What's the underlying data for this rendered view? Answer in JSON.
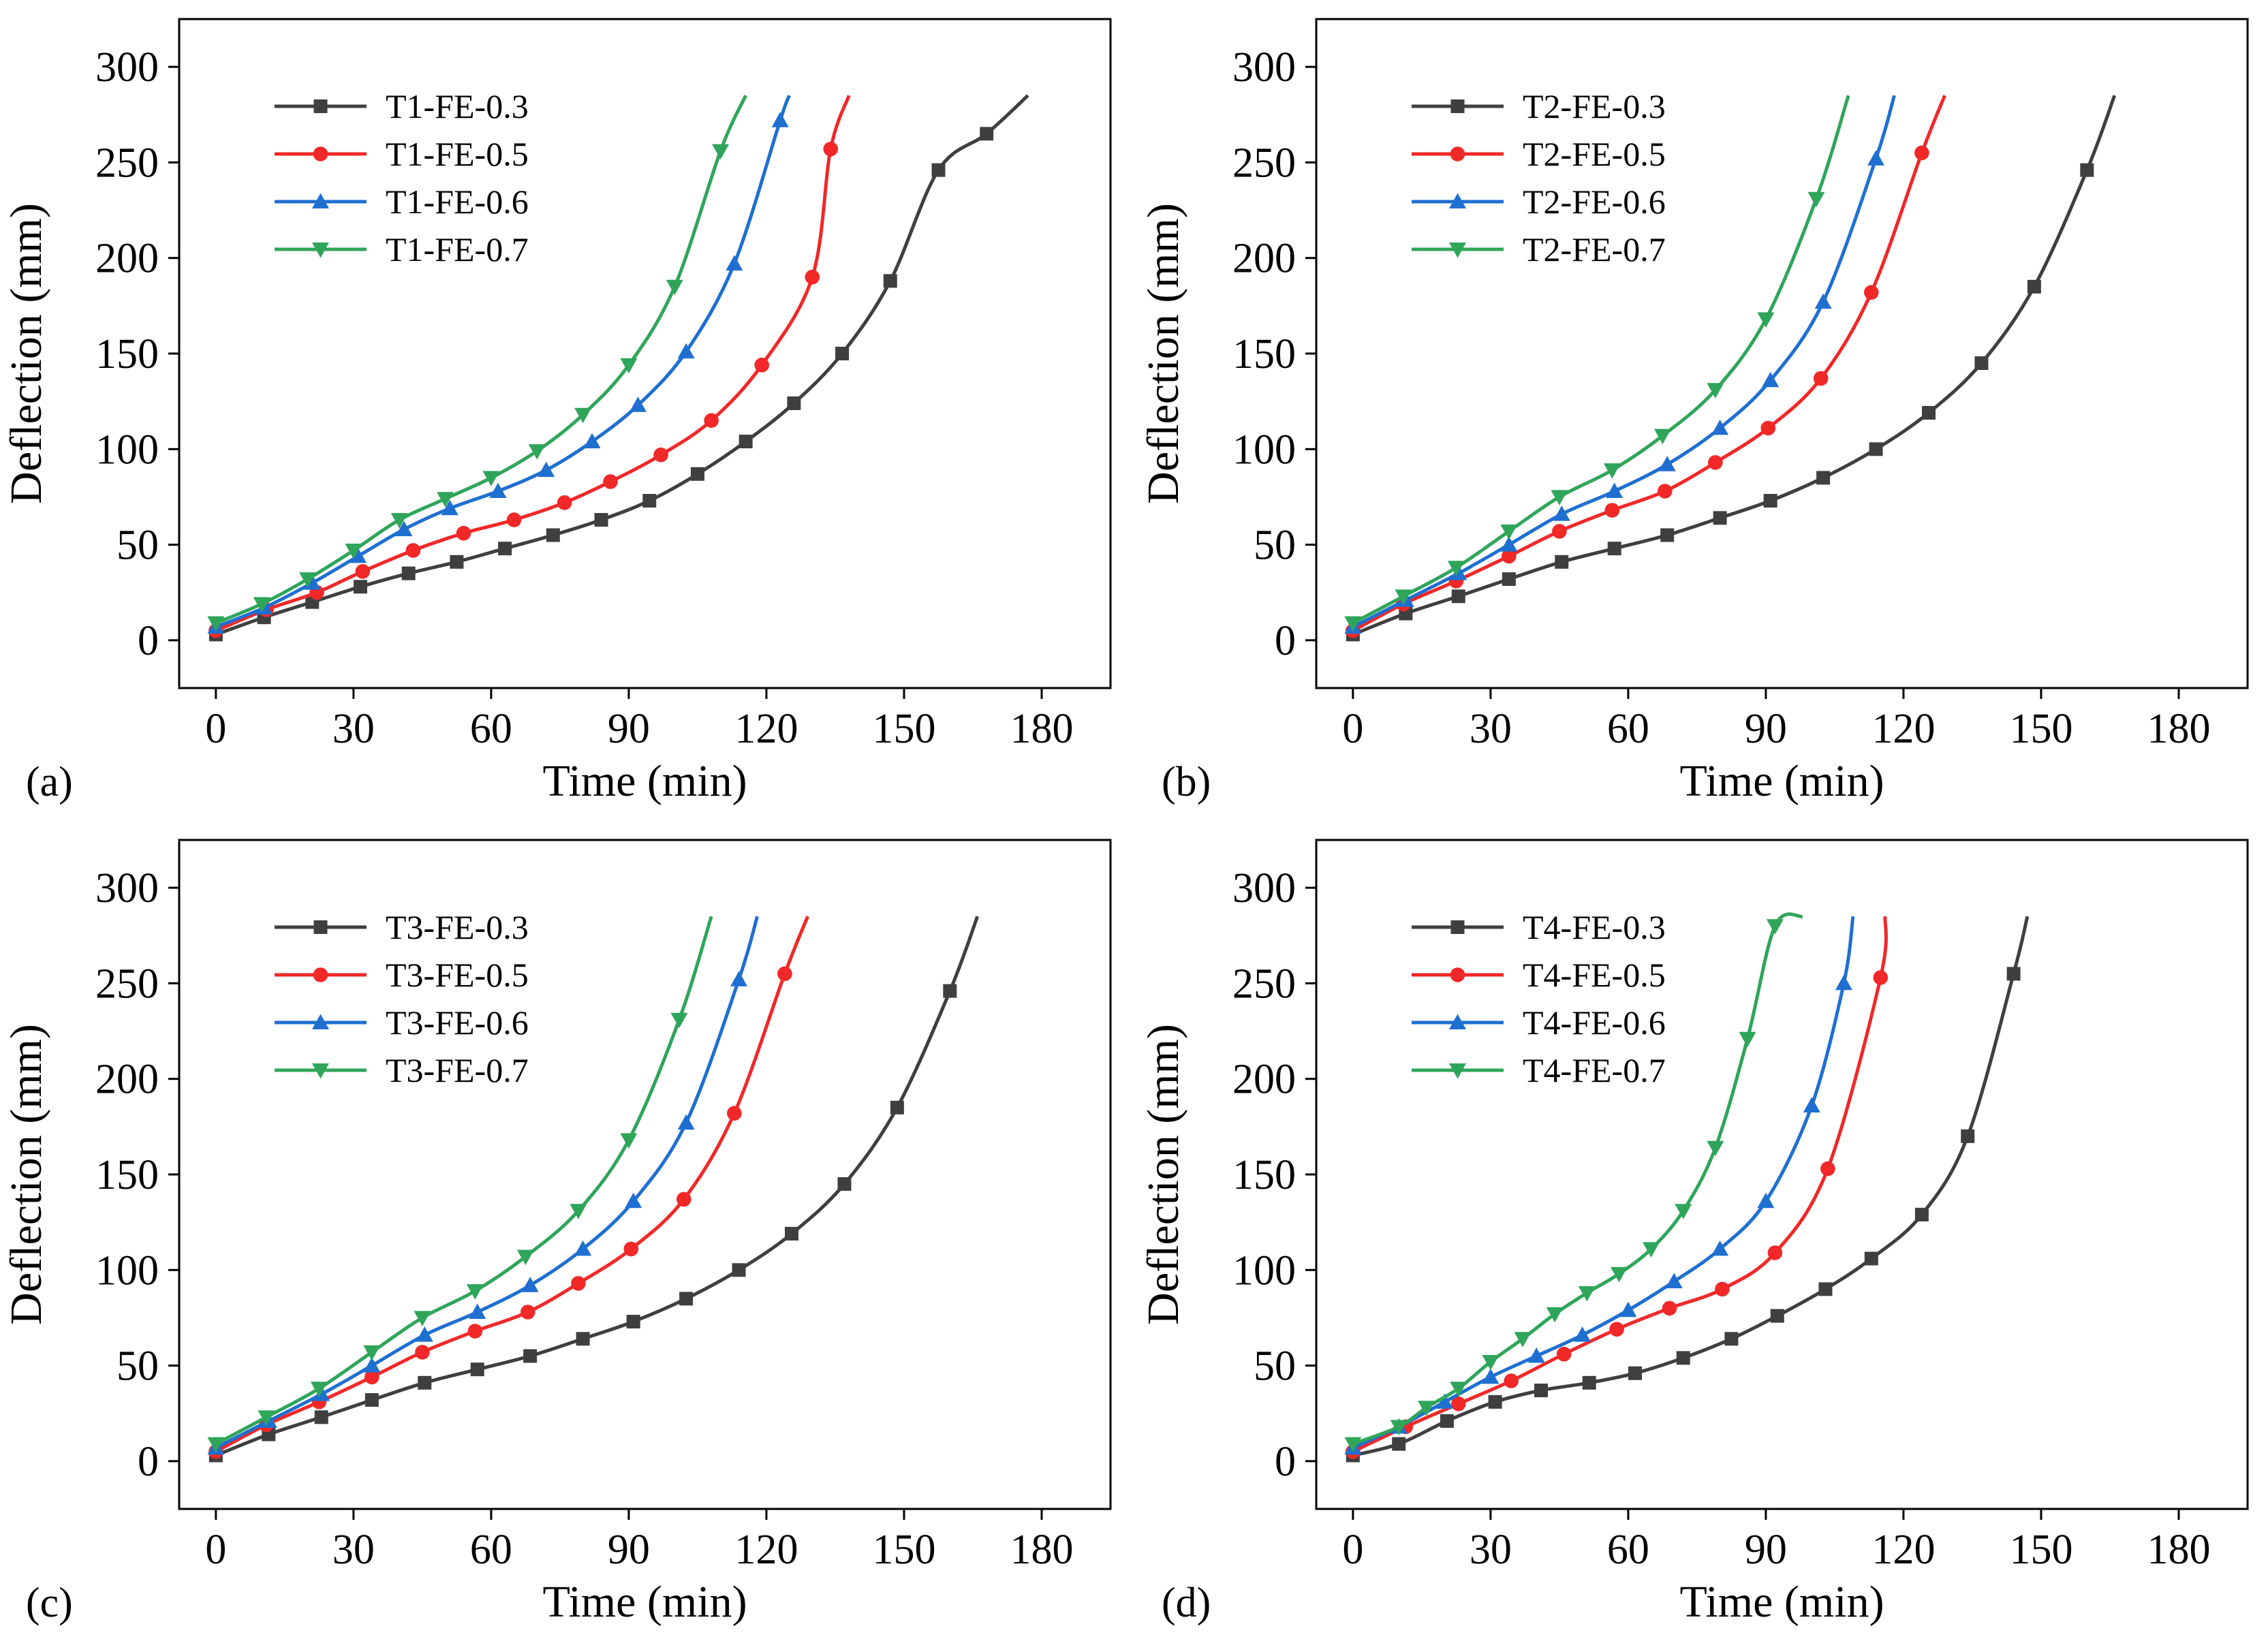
{
  "colors": {
    "FE-0.3": "#3f3f3f",
    "FE-0.5": "#f02828",
    "FE-0.6": "#1f6fd1",
    "FE-0.7": "#2fa55a"
  },
  "chart_data": [
    {
      "type": "line",
      "panel_label": "(a)",
      "xlabel": "Time (min)",
      "ylabel": "Deflection (mm)",
      "xlim": [
        -8,
        195
      ],
      "ylim": [
        -25,
        325
      ],
      "xticks": [
        0,
        30,
        60,
        90,
        120,
        150,
        180
      ],
      "yticks": [
        0,
        50,
        100,
        150,
        200,
        250,
        300
      ],
      "legend_position": "top-left",
      "series": [
        {
          "name": "T1-FE-0.3",
          "marker": "square",
          "end": [
            177,
            285
          ],
          "x": [
            0,
            10.5,
            21,
            31.5,
            42,
            52.5,
            63,
            73.5,
            84,
            94.5,
            105,
            115.5,
            126,
            136.5,
            147,
            157.5,
            168
          ],
          "y": [
            3,
            12,
            20,
            28,
            35,
            41,
            48,
            55,
            63,
            73,
            87,
            104,
            124,
            150,
            188,
            246,
            265
          ]
        },
        {
          "name": "T1-FE-0.5",
          "marker": "circle",
          "end": [
            138,
            285
          ],
          "x": [
            0,
            11,
            22,
            32,
            43,
            54,
            65,
            76,
            86,
            97,
            108,
            119,
            130
          ],
          "y": [
            5,
            16,
            25,
            36,
            47,
            56,
            63,
            72,
            83,
            97,
            115,
            144,
            190
          ],
          "extra": [
            [
              134,
              257
            ]
          ]
        },
        {
          "name": "T1-FE-0.6",
          "marker": "triangle-up",
          "end": [
            125,
            285
          ],
          "x": [
            0,
            10.5,
            21,
            31,
            41,
            51,
            61.5,
            72,
            82,
            92,
            102.5,
            113,
            123
          ],
          "y": [
            7,
            17,
            30,
            44,
            58,
            69,
            78,
            89,
            104,
            123,
            151,
            197,
            272
          ]
        },
        {
          "name": "T1-FE-0.7",
          "marker": "triangle-down",
          "end": [
            115.5,
            285
          ],
          "x": [
            0,
            10,
            20,
            30,
            40,
            50,
            60,
            70,
            80,
            90,
            100,
            110
          ],
          "y": [
            9,
            19,
            32,
            47,
            63,
            74,
            85,
            99,
            118,
            144,
            185,
            256
          ]
        }
      ]
    },
    {
      "type": "line",
      "panel_label": "(b)",
      "xlabel": "Time (min)",
      "ylabel": "Deflection (mm)",
      "xlim": [
        -8,
        195
      ],
      "ylim": [
        -25,
        325
      ],
      "xticks": [
        0,
        30,
        60,
        90,
        120,
        150,
        180
      ],
      "yticks": [
        0,
        50,
        100,
        150,
        200,
        250,
        300
      ],
      "legend_position": "top-left",
      "series": [
        {
          "name": "T2-FE-0.3",
          "marker": "square",
          "end": [
            166,
            285
          ],
          "x": [
            0,
            11.5,
            23,
            34,
            45.5,
            57,
            68.5,
            80,
            91,
            102.5,
            114,
            125.5,
            137,
            148.5,
            160
          ],
          "y": [
            3,
            14,
            23,
            32,
            41,
            48,
            55,
            64,
            73,
            85,
            100,
            119,
            145,
            185,
            246
          ]
        },
        {
          "name": "T2-FE-0.5",
          "marker": "circle",
          "end": [
            129,
            285
          ],
          "x": [
            0,
            11,
            22.5,
            34,
            45,
            56.5,
            68,
            79,
            90.5,
            102,
            113,
            124
          ],
          "y": [
            5,
            19,
            31,
            44,
            57,
            68,
            78,
            93,
            111,
            137,
            182,
            255
          ]
        },
        {
          "name": "T2-FE-0.6",
          "marker": "triangle-up",
          "end": [
            118,
            285
          ],
          "x": [
            0,
            11.5,
            23,
            34,
            45.5,
            57,
            68.5,
            80,
            91,
            102.5,
            114
          ],
          "y": [
            7,
            21,
            35,
            50,
            66,
            78,
            92,
            111,
            136,
            177,
            252
          ]
        },
        {
          "name": "T2-FE-0.7",
          "marker": "triangle-down",
          "end": [
            108,
            285
          ],
          "x": [
            0,
            11,
            22.5,
            34,
            45,
            56.5,
            67.5,
            79,
            90,
            101
          ],
          "y": [
            9,
            23,
            38,
            57,
            75,
            89,
            107,
            131,
            168,
            231
          ]
        }
      ]
    },
    {
      "type": "line",
      "panel_label": "(c)",
      "xlabel": "Time (min)",
      "ylabel": "Deflection (mm)",
      "xlim": [
        -8,
        195
      ],
      "ylim": [
        -25,
        325
      ],
      "xticks": [
        0,
        30,
        60,
        90,
        120,
        150,
        180
      ],
      "yticks": [
        0,
        50,
        100,
        150,
        200,
        250,
        300
      ],
      "legend_position": "top-left",
      "series": [
        {
          "name": "T3-FE-0.3",
          "marker": "square",
          "end": [
            166,
            285
          ],
          "x": [
            0,
            11.5,
            23,
            34,
            45.5,
            57,
            68.5,
            80,
            91,
            102.5,
            114,
            125.5,
            137,
            148.5,
            160
          ],
          "y": [
            3,
            14,
            23,
            32,
            41,
            48,
            55,
            64,
            73,
            85,
            100,
            119,
            145,
            185,
            246
          ]
        },
        {
          "name": "T3-FE-0.5",
          "marker": "circle",
          "end": [
            129,
            285
          ],
          "x": [
            0,
            11,
            22.5,
            34,
            45,
            56.5,
            68,
            79,
            90.5,
            102,
            113,
            124
          ],
          "y": [
            5,
            19,
            31,
            44,
            57,
            68,
            78,
            93,
            111,
            137,
            182,
            255
          ]
        },
        {
          "name": "T3-FE-0.6",
          "marker": "triangle-up",
          "end": [
            118,
            285
          ],
          "x": [
            0,
            11.5,
            23,
            34,
            45.5,
            57,
            68.5,
            80,
            91,
            102.5,
            114
          ],
          "y": [
            7,
            21,
            35,
            50,
            66,
            78,
            92,
            111,
            136,
            177,
            252
          ]
        },
        {
          "name": "T3-FE-0.7",
          "marker": "triangle-down",
          "end": [
            108,
            285
          ],
          "x": [
            0,
            11,
            22.5,
            34,
            45,
            56.5,
            67.5,
            79,
            90,
            101
          ],
          "y": [
            9,
            23,
            38,
            57,
            75,
            89,
            107,
            131,
            168,
            231
          ]
        }
      ]
    },
    {
      "type": "line",
      "panel_label": "(d)",
      "xlabel": "Time (min)",
      "ylabel": "Deflection (mm)",
      "xlim": [
        -8,
        195
      ],
      "ylim": [
        -25,
        325
      ],
      "xticks": [
        0,
        30,
        60,
        90,
        120,
        150,
        180
      ],
      "yticks": [
        0,
        50,
        100,
        150,
        200,
        250,
        300
      ],
      "legend_position": "top-left",
      "series": [
        {
          "name": "T4-FE-0.3",
          "marker": "square",
          "end": [
            147,
            285
          ],
          "x": [
            0,
            10,
            20.5,
            31,
            41,
            51.5,
            61.5,
            72,
            82.5,
            92.5,
            103,
            113,
            124,
            134,
            144
          ],
          "y": [
            3,
            9,
            21,
            31,
            37,
            41,
            46,
            54,
            64,
            76,
            90,
            106,
            129,
            170,
            255
          ]
        },
        {
          "name": "T4-FE-0.5",
          "marker": "circle",
          "end": [
            116,
            285
          ],
          "x": [
            0,
            11.5,
            23,
            34.5,
            46,
            57.5,
            69,
            80.5,
            92,
            103.5,
            115
          ],
          "y": [
            5,
            18,
            30,
            42,
            56,
            69,
            80,
            90,
            109,
            153,
            253
          ]
        },
        {
          "name": "T4-FE-0.6",
          "marker": "triangle-up",
          "end": [
            109,
            285
          ],
          "x": [
            0,
            10,
            20,
            30,
            40,
            50,
            60,
            70,
            80,
            90,
            100,
            107
          ],
          "y": [
            7,
            18,
            31,
            44,
            55,
            66,
            79,
            94,
            111,
            136,
            186,
            250
          ]
        },
        {
          "name": "T4-FE-0.7",
          "marker": "triangle-down",
          "end": [
            98,
            285
          ],
          "x": [
            0,
            10,
            16,
            23,
            30,
            37,
            44,
            51,
            58,
            65,
            72,
            79,
            86,
            92
          ],
          "y": [
            9,
            18,
            28,
            38,
            52,
            64,
            77,
            88,
            98,
            111,
            131,
            164,
            221,
            280
          ]
        }
      ]
    }
  ]
}
